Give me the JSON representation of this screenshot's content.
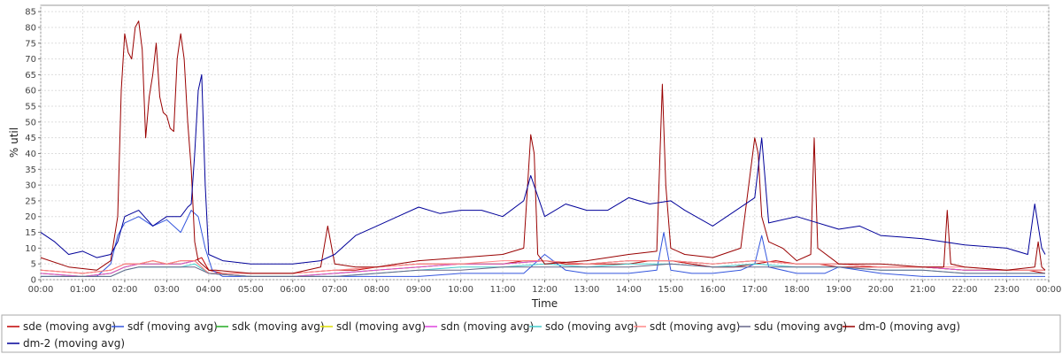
{
  "chart_data": {
    "type": "line",
    "xlabel": "Time",
    "ylabel": "% util",
    "xlim": [
      0,
      1440
    ],
    "ylim": [
      0,
      87
    ],
    "grid": true,
    "legend_position": "bottom",
    "x_ticks": [
      "00:00",
      "01:00",
      "02:00",
      "03:00",
      "04:00",
      "05:00",
      "06:00",
      "07:00",
      "08:00",
      "09:00",
      "10:00",
      "11:00",
      "12:00",
      "13:00",
      "14:00",
      "15:00",
      "16:00",
      "17:00",
      "18:00",
      "19:00",
      "20:00",
      "21:00",
      "22:00",
      "23:00",
      "00:00"
    ],
    "y_ticks": [
      0,
      5,
      10,
      15,
      20,
      25,
      30,
      35,
      40,
      45,
      50,
      55,
      60,
      65,
      70,
      75,
      80,
      85
    ],
    "series": [
      {
        "name": "sde (moving avg)",
        "color": "#c00000",
        "x": [
          0,
          60,
          100,
          120,
          140,
          160,
          180,
          200,
          220,
          230,
          240,
          260,
          300,
          360,
          420,
          450,
          480,
          540,
          600,
          660,
          690,
          720,
          750,
          780,
          840,
          870,
          900,
          930,
          960,
          990,
          1020,
          1050,
          1080,
          1110,
          1140,
          1170,
          1200,
          1260,
          1320,
          1380,
          1410,
          1435
        ],
        "values": [
          3,
          2,
          3,
          5,
          5,
          6,
          5,
          6,
          6,
          7,
          3,
          2,
          2,
          2,
          3,
          3,
          4,
          5,
          5,
          5,
          6,
          6,
          5,
          5,
          5,
          6,
          6,
          5,
          4,
          4,
          5,
          6,
          5,
          5,
          4,
          4,
          4,
          4,
          3,
          3,
          3,
          2
        ]
      },
      {
        "name": "sdf (moving avg)",
        "color": "#3355dd",
        "x": [
          0,
          40,
          80,
          100,
          110,
          120,
          140,
          160,
          180,
          200,
          215,
          225,
          235,
          245,
          260,
          300,
          360,
          420,
          480,
          540,
          600,
          660,
          690,
          720,
          750,
          780,
          840,
          880,
          890,
          900,
          930,
          960,
          1000,
          1020,
          1030,
          1040,
          1080,
          1120,
          1140,
          1200,
          1260,
          1320,
          1380,
          1420,
          1435
        ],
        "values": [
          1,
          1,
          1,
          5,
          14,
          18,
          20,
          17,
          19,
          15,
          22,
          20,
          10,
          3,
          1,
          1,
          1,
          1,
          1,
          1,
          2,
          2,
          2,
          8,
          3,
          2,
          2,
          3,
          15,
          3,
          2,
          2,
          3,
          5,
          14,
          4,
          2,
          2,
          4,
          2,
          1,
          1,
          1,
          1,
          1
        ]
      },
      {
        "name": "sdk (moving avg)",
        "color": "#22aa22",
        "x": [
          0,
          60,
          100,
          120,
          140,
          160,
          180,
          200,
          220,
          240,
          300,
          360,
          420,
          480,
          540,
          600,
          660,
          720,
          780,
          840,
          900,
          960,
          1020,
          1080,
          1140,
          1200,
          1260,
          1320,
          1380,
          1435
        ],
        "values": [
          2,
          1,
          2,
          4,
          5,
          5,
          5,
          5,
          6,
          2,
          1,
          1,
          2,
          3,
          4,
          5,
          5,
          6,
          5,
          6,
          6,
          5,
          6,
          5,
          5,
          4,
          4,
          3,
          3,
          3
        ]
      },
      {
        "name": "sdl (moving avg)",
        "color": "#dddd00",
        "x": [
          0,
          60,
          100,
          120,
          140,
          160,
          180,
          200,
          220,
          240,
          300,
          360,
          420,
          480,
          540,
          600,
          660,
          720,
          780,
          840,
          900,
          960,
          1020,
          1080,
          1140,
          1200,
          1260,
          1320,
          1380,
          1435
        ],
        "values": [
          2,
          1,
          2,
          4,
          5,
          5,
          5,
          5,
          6,
          2,
          1,
          1,
          2,
          3,
          4,
          5,
          5,
          6,
          5,
          6,
          6,
          5,
          6,
          5,
          5,
          4,
          4,
          3,
          3,
          3
        ]
      },
      {
        "name": "sdn (moving avg)",
        "color": "#dd44dd",
        "x": [
          0,
          60,
          100,
          120,
          140,
          160,
          180,
          200,
          220,
          240,
          300,
          360,
          420,
          480,
          540,
          600,
          660,
          720,
          780,
          840,
          900,
          960,
          1020,
          1080,
          1140,
          1200,
          1260,
          1320,
          1380,
          1435
        ],
        "values": [
          2,
          1,
          2,
          4,
          5,
          5,
          5,
          5,
          6,
          2,
          1,
          1,
          2,
          3,
          4,
          5,
          5,
          6,
          5,
          6,
          6,
          5,
          6,
          5,
          5,
          4,
          4,
          3,
          3,
          3
        ]
      },
      {
        "name": "sdo (moving avg)",
        "color": "#44cccc",
        "x": [
          0,
          60,
          100,
          120,
          140,
          160,
          180,
          200,
          220,
          240,
          300,
          360,
          420,
          480,
          540,
          600,
          660,
          720,
          780,
          840,
          900,
          960,
          1020,
          1080,
          1140,
          1200,
          1260,
          1320,
          1380,
          1435
        ],
        "values": [
          1,
          1,
          1,
          3,
          4,
          4,
          4,
          4,
          5,
          2,
          1,
          1,
          1,
          2,
          3,
          4,
          4,
          5,
          4,
          5,
          5,
          4,
          5,
          4,
          4,
          3,
          3,
          2,
          2,
          2
        ]
      },
      {
        "name": "sdt (moving avg)",
        "color": "#ff8888",
        "x": [
          0,
          60,
          100,
          120,
          140,
          160,
          180,
          200,
          220,
          240,
          300,
          360,
          420,
          480,
          540,
          600,
          660,
          720,
          780,
          840,
          900,
          960,
          1020,
          1080,
          1140,
          1200,
          1260,
          1320,
          1380,
          1435
        ],
        "values": [
          3,
          2,
          3,
          5,
          5,
          6,
          5,
          6,
          6,
          2,
          2,
          2,
          3,
          4,
          5,
          5,
          6,
          6,
          5,
          6,
          6,
          5,
          6,
          5,
          5,
          4,
          4,
          4,
          3,
          3
        ]
      },
      {
        "name": "sdu (moving avg)",
        "color": "#666688",
        "x": [
          0,
          60,
          100,
          120,
          140,
          160,
          180,
          200,
          220,
          240,
          300,
          360,
          420,
          480,
          540,
          600,
          660,
          720,
          780,
          840,
          900,
          960,
          1020,
          1080,
          1140,
          1200,
          1260,
          1320,
          1380,
          1435
        ],
        "values": [
          1,
          1,
          1,
          3,
          4,
          4,
          4,
          4,
          4,
          2,
          1,
          1,
          1,
          2,
          3,
          3,
          4,
          4,
          4,
          4,
          5,
          4,
          4,
          4,
          4,
          3,
          3,
          2,
          2,
          2
        ]
      },
      {
        "name": "dm-0 (moving avg)",
        "color": "#990000",
        "x": [
          0,
          40,
          80,
          100,
          110,
          115,
          120,
          125,
          130,
          135,
          140,
          145,
          150,
          155,
          160,
          165,
          170,
          175,
          180,
          185,
          190,
          195,
          200,
          205,
          210,
          215,
          220,
          225,
          230,
          235,
          240,
          250,
          300,
          360,
          400,
          410,
          420,
          450,
          480,
          540,
          600,
          660,
          690,
          700,
          705,
          710,
          720,
          780,
          840,
          880,
          888,
          893,
          900,
          920,
          960,
          1000,
          1020,
          1025,
          1030,
          1040,
          1060,
          1080,
          1100,
          1105,
          1110,
          1140,
          1200,
          1260,
          1290,
          1295,
          1300,
          1320,
          1380,
          1420,
          1425,
          1430,
          1435
        ],
        "values": [
          7,
          4,
          3,
          6,
          20,
          60,
          78,
          72,
          70,
          80,
          82,
          73,
          45,
          58,
          65,
          75,
          58,
          53,
          52,
          48,
          47,
          70,
          78,
          70,
          50,
          35,
          12,
          6,
          5,
          4,
          3,
          3,
          2,
          2,
          4,
          17,
          5,
          4,
          4,
          6,
          7,
          8,
          10,
          46,
          40,
          8,
          5,
          6,
          8,
          9,
          62,
          30,
          10,
          8,
          7,
          10,
          45,
          40,
          20,
          12,
          10,
          6,
          8,
          45,
          10,
          5,
          5,
          4,
          4,
          22,
          5,
          4,
          3,
          4,
          12,
          4,
          3
        ]
      },
      {
        "name": "dm-2 (moving avg)",
        "color": "#000099",
        "x": [
          0,
          20,
          40,
          60,
          80,
          100,
          110,
          120,
          140,
          160,
          180,
          200,
          210,
          215,
          220,
          225,
          230,
          235,
          240,
          260,
          300,
          360,
          400,
          420,
          450,
          480,
          510,
          540,
          570,
          600,
          630,
          660,
          690,
          700,
          720,
          750,
          780,
          810,
          840,
          870,
          900,
          920,
          960,
          1020,
          1030,
          1040,
          1080,
          1140,
          1170,
          1200,
          1260,
          1290,
          1320,
          1380,
          1410,
          1420,
          1430,
          1435
        ],
        "values": [
          15,
          12,
          8,
          9,
          7,
          8,
          12,
          20,
          22,
          17,
          20,
          20,
          23,
          24,
          40,
          60,
          65,
          30,
          8,
          6,
          5,
          5,
          6,
          8,
          14,
          17,
          20,
          23,
          21,
          22,
          22,
          20,
          25,
          33,
          20,
          24,
          22,
          22,
          26,
          24,
          25,
          22,
          17,
          26,
          45,
          18,
          20,
          16,
          17,
          14,
          13,
          12,
          11,
          10,
          8,
          24,
          10,
          8
        ]
      }
    ]
  }
}
